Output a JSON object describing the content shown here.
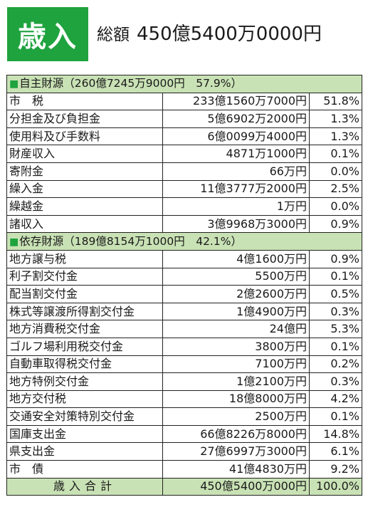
{
  "header": {
    "badge": "歳入",
    "total_prefix": "総額",
    "total_amount": "450億5400万0000円"
  },
  "sections": [
    {
      "title": "自主財源（260億7245万9000円　57.9%）",
      "rows": [
        {
          "name": "市　税",
          "amount": "233億1560万7000円",
          "pct": "51.8%"
        },
        {
          "name": "分担金及び負担金",
          "amount": "5億6902万2000円",
          "pct": "1.3%"
        },
        {
          "name": "使用料及び手数料",
          "amount": "6億0099万4000円",
          "pct": "1.3%"
        },
        {
          "name": "財産収入",
          "amount": "4871万1000円",
          "pct": "0.1%"
        },
        {
          "name": "寄附金",
          "amount": "66万円",
          "pct": "0.0%"
        },
        {
          "name": "繰入金",
          "amount": "11億3777万2000円",
          "pct": "2.5%"
        },
        {
          "name": "繰越金",
          "amount": "1万円",
          "pct": "0.0%"
        },
        {
          "name": "諸収入",
          "amount": "3億9968万3000円",
          "pct": "0.9%"
        }
      ]
    },
    {
      "title": "依存財源（189億8154万1000円　42.1%）",
      "rows": [
        {
          "name": "地方譲与税",
          "amount": "4億1600万円",
          "pct": "0.9%"
        },
        {
          "name": "利子割交付金",
          "amount": "5500万円",
          "pct": "0.1%"
        },
        {
          "name": "配当割交付金",
          "amount": "2億2600万円",
          "pct": "0.5%"
        },
        {
          "name": "株式等譲渡所得割交付金",
          "amount": "1億4900万円",
          "pct": "0.3%"
        },
        {
          "name": "地方消費税交付金",
          "amount": "24億円",
          "pct": "5.3%"
        },
        {
          "name": "ゴルフ場利用税交付金",
          "amount": "3800万円",
          "pct": "0.1%"
        },
        {
          "name": "自動車取得税交付金",
          "amount": "7100万円",
          "pct": "0.2%"
        },
        {
          "name": "地方特例交付金",
          "amount": "1億2100万円",
          "pct": "0.3%"
        },
        {
          "name": "地方交付税",
          "amount": "18億8000万円",
          "pct": "4.2%"
        },
        {
          "name": "交通安全対策特別交付金",
          "amount": "2500万円",
          "pct": "0.1%"
        },
        {
          "name": "国庫支出金",
          "amount": "66億8226万8000円",
          "pct": "14.8%"
        },
        {
          "name": "県支出金",
          "amount": "27億6997万3000円",
          "pct": "6.1%"
        },
        {
          "name": "市　債",
          "amount": "41億4830万円",
          "pct": "9.2%"
        }
      ]
    }
  ],
  "total": {
    "label": "歳入合計",
    "amount": "450億5400万000円",
    "pct": "100.0%"
  }
}
